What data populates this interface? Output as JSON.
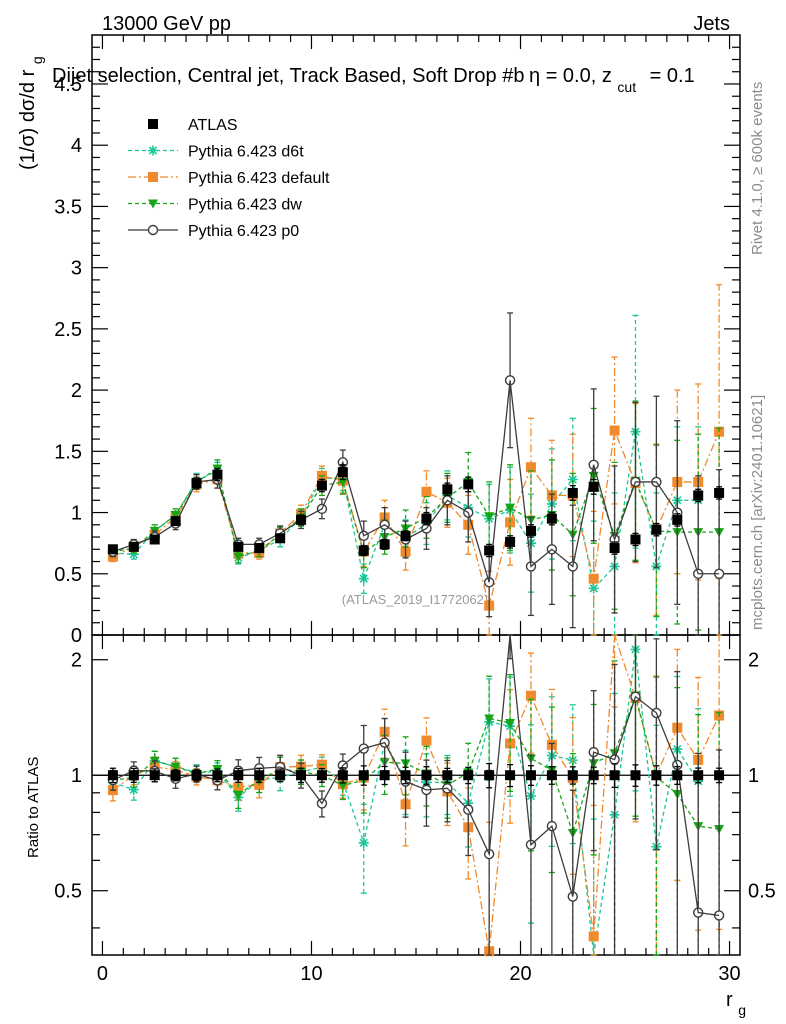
{
  "header": {
    "left": "13000 GeV pp",
    "right": "Jets",
    "title_main": "Dijet selection, Central jet, Track Based, Soft Drop #b",
    "title_eta": "η = 0.0, z",
    "title_cut": "cut",
    "title_tail": "= 0.1"
  },
  "side": {
    "rivet": "Rivet 4.1.0, ≥ 600k events",
    "mcplots": "mcplots.cern.ch [arXiv:2401.10621]"
  },
  "watermark": "(ATLAS_2019_I1772062)",
  "colors": {
    "ATLAS": "#000000",
    "d6t": "#19c79c",
    "default": "#f08a2c",
    "dw": "#17a517",
    "p0": "#3c3c3c"
  },
  "chart_data": {
    "type": "scatter",
    "xlabel_main": "r",
    "xlabel_sub": "g",
    "ylabel_main": "(1/σ) dσ/d r",
    "ylabel_sub": "g",
    "ratio_ylabel": "Ratio to ATLAS",
    "xlim": [
      -0.5,
      30.5
    ],
    "ylim": [
      0,
      4.9
    ],
    "ratio_ylim": [
      0.34,
      2.32
    ],
    "x_ticks": [
      "0",
      "10",
      "20",
      "30"
    ],
    "y_ticks": [
      "0",
      "0.5",
      "1",
      "1.5",
      "2",
      "2.5",
      "3",
      "3.5",
      "4",
      "4.5"
    ],
    "ratio_ticks": [
      "0.5",
      "1",
      "2"
    ],
    "x": [
      0.5,
      1.5,
      2.5,
      3.5,
      4.5,
      5.5,
      6.5,
      7.5,
      8.5,
      9.5,
      10.5,
      11.5,
      12.5,
      13.5,
      14.5,
      15.5,
      16.5,
      17.5,
      18.5,
      19.5,
      20.5,
      21.5,
      22.5,
      23.5,
      24.5,
      25.5,
      26.5,
      27.5,
      28.5,
      29.5
    ],
    "legend": [
      {
        "key": "ATLAS",
        "label": "ATLAS"
      },
      {
        "key": "d6t",
        "label": "Pythia 6.423 d6t"
      },
      {
        "key": "default",
        "label": "Pythia 6.423 default"
      },
      {
        "key": "dw",
        "label": "Pythia 6.423 dw"
      },
      {
        "key": "p0",
        "label": "Pythia 6.423 p0"
      }
    ],
    "series": [
      {
        "key": "ATLAS",
        "name": "ATLAS",
        "marker": "square",
        "dash": "",
        "values": [
          0.7,
          0.72,
          0.78,
          0.93,
          1.24,
          1.31,
          0.72,
          0.71,
          0.79,
          0.94,
          1.22,
          1.33,
          0.69,
          0.74,
          0.81,
          0.95,
          1.19,
          1.23,
          0.69,
          0.76,
          0.85,
          0.95,
          1.16,
          1.21,
          0.71,
          0.78,
          0.86,
          0.94,
          1.14,
          1.16
        ],
        "errors": [
          0.03,
          0.03,
          0.03,
          0.03,
          0.04,
          0.05,
          0.03,
          0.03,
          0.03,
          0.04,
          0.05,
          0.06,
          0.04,
          0.04,
          0.04,
          0.05,
          0.05,
          0.06,
          0.05,
          0.05,
          0.05,
          0.05,
          0.06,
          0.06,
          0.05,
          0.05,
          0.05,
          0.05,
          0.05,
          0.05
        ]
      },
      {
        "key": "d6t",
        "name": "Pythia 6.423 d6t",
        "marker": "star",
        "dash": "4,3",
        "values": [
          0.67,
          0.66,
          0.85,
          0.98,
          1.26,
          1.34,
          0.63,
          0.69,
          0.78,
          0.96,
          1.28,
          1.28,
          0.46,
          0.9,
          0.79,
          0.91,
          1.14,
          1.04,
          0.95,
          1.02,
          0.75,
          1.07,
          1.27,
          0.38,
          0.56,
          1.66,
          0.56,
          1.1,
          1.1,
          null
        ],
        "errors": [
          0.04,
          0.04,
          0.05,
          0.05,
          0.06,
          0.07,
          0.05,
          0.05,
          0.06,
          0.07,
          0.08,
          0.1,
          0.12,
          0.14,
          0.15,
          0.17,
          0.2,
          0.24,
          0.28,
          0.35,
          0.4,
          0.45,
          0.5,
          0.55,
          0.6,
          0.95,
          0.6,
          0.6,
          0.6,
          0.6
        ]
      },
      {
        "key": "default",
        "name": "Pythia 6.423 default",
        "marker": "square",
        "dash": "8,3,2,3",
        "values": [
          0.64,
          0.72,
          0.82,
          0.96,
          1.23,
          1.27,
          0.67,
          0.67,
          0.83,
          0.99,
          1.3,
          1.26,
          0.68,
          0.96,
          0.68,
          1.17,
          1.08,
          0.9,
          0.24,
          0.92,
          1.37,
          1.14,
          1.14,
          0.46,
          1.67,
          1.24,
          0.86,
          1.25,
          1.25,
          1.66
        ],
        "errors": [
          0.04,
          0.04,
          0.05,
          0.05,
          0.06,
          0.07,
          0.05,
          0.05,
          0.06,
          0.07,
          0.08,
          0.1,
          0.12,
          0.14,
          0.15,
          0.17,
          0.2,
          0.24,
          0.28,
          0.35,
          0.4,
          0.45,
          0.5,
          0.55,
          0.6,
          0.65,
          0.7,
          0.75,
          0.8,
          1.2
        ]
      },
      {
        "key": "dw",
        "name": "Pythia 6.423 dw",
        "marker": "triangle",
        "dash": "4,3",
        "values": [
          0.68,
          0.71,
          0.85,
          0.98,
          1.25,
          1.36,
          0.64,
          0.69,
          0.82,
          0.96,
          1.22,
          1.25,
          0.67,
          0.8,
          0.87,
          0.96,
          1.12,
          1.25,
          0.97,
          1.04,
          0.94,
          0.98,
          0.82,
          1.3,
          0.81,
          1.26,
          0.85,
          0.84,
          0.84,
          0.84
        ],
        "errors": [
          0.04,
          0.04,
          0.05,
          0.05,
          0.06,
          0.07,
          0.05,
          0.05,
          0.06,
          0.07,
          0.08,
          0.1,
          0.12,
          0.14,
          0.15,
          0.17,
          0.2,
          0.24,
          0.28,
          0.35,
          0.4,
          0.45,
          0.5,
          0.55,
          0.6,
          0.65,
          0.7,
          0.75,
          0.8,
          0.85
        ]
      },
      {
        "key": "p0",
        "name": "Pythia 6.423 p0",
        "marker": "circle",
        "dash": "",
        "values": [
          0.68,
          0.74,
          0.8,
          0.91,
          1.25,
          1.27,
          0.74,
          0.74,
          0.83,
          0.94,
          1.03,
          1.41,
          0.81,
          0.9,
          0.78,
          0.87,
          1.1,
          1.0,
          0.43,
          2.08,
          0.56,
          0.7,
          0.56,
          1.39,
          0.78,
          1.25,
          1.25,
          1.0,
          0.5,
          0.5
        ],
        "errors": [
          0.04,
          0.04,
          0.05,
          0.05,
          0.06,
          0.07,
          0.05,
          0.05,
          0.06,
          0.07,
          0.08,
          0.1,
          0.12,
          0.14,
          0.15,
          0.17,
          0.2,
          0.24,
          0.28,
          0.55,
          0.4,
          0.45,
          0.5,
          0.62,
          0.6,
          0.65,
          0.7,
          0.75,
          0.8,
          0.85
        ]
      }
    ]
  }
}
